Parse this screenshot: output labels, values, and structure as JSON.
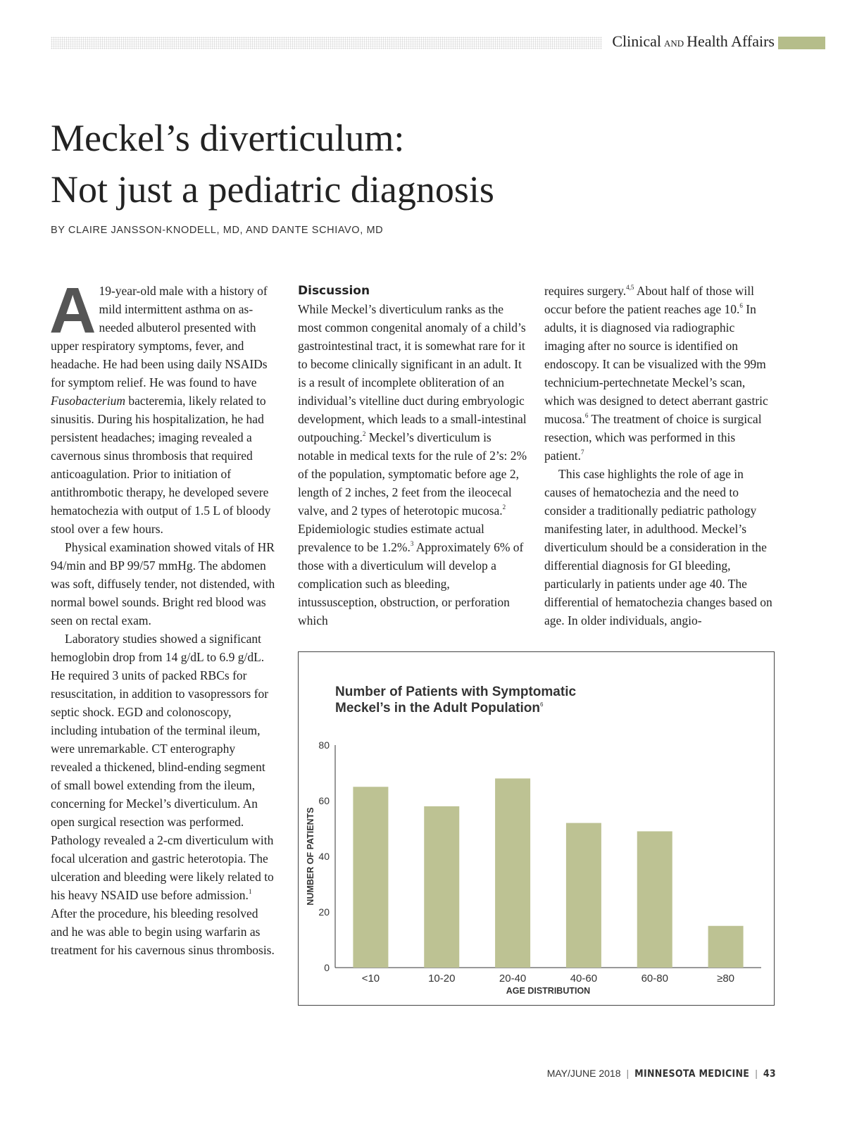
{
  "header": {
    "section": [
      "Clinical",
      "AND",
      "Health Affairs"
    ]
  },
  "article": {
    "title": [
      "Meckel’s diverticulum:",
      "Not just a pediatric diagnosis"
    ],
    "byline": "BY CLAIRE JANSSON-KNODELL, MD, AND DANTE SCHIAVO, MD",
    "columns": [
      {
        "blocks": [
          {
            "dropcap": "A",
            "runs": [
              "19-year-old male with a history of mild intermittent asthma on as-needed albuterol presented with upper respiratory symptoms, fever, and headache. He had been using daily NSAIDs for symptom relief. He was found to have ",
              {
                "i": "Fusobacterium"
              },
              " bacteremia, likely related to sinusitis. During his hospitalization, he had persistent headaches; imaging revealed a cavernous sinus thrombosis that required anticoagulation. Prior to initiation of antithrombotic therapy, he developed severe hematochezia with output of 1.5 L of bloody stool over a few hours."
            ]
          },
          {
            "runs": [
              "Physical examination showed vitals of HR 94/min and BP 99/57 mmHg. The abdomen was soft, diffusely tender, not distended, with normal bowel sounds. Bright red blood was seen on rectal exam."
            ]
          },
          {
            "runs": [
              "Laboratory studies showed a significant hemoglobin drop from 14 g/dL to 6.9 g/dL. He required 3 units of packed RBCs for resuscitation, in addition to vasopressors for septic shock. EGD and colonoscopy, including intubation of the terminal ileum, were unremarkable. CT enterography revealed a thickened, blind-ending segment of small bowel extending from the ileum, concerning for Meckel’s diverticulum. An open surgical resection was performed. Pathology revealed a 2-cm diverticulum with focal ulceration and gastric heterotopia. The ulceration and bleeding were likely related to his heavy NSAID use before admission.",
              {
                "sup": "1"
              },
              " After the procedure, his bleeding resolved and he was able to begin using warfarin as treatment for his cavernous sinus thrombosis."
            ]
          }
        ]
      },
      {
        "blocks": [
          {
            "heading": "Discussion"
          },
          {
            "runs": [
              "While Meckel’s diverticulum ranks as the most common congenital anomaly of a child’s gastrointestinal tract, it is somewhat rare for it to become clinically significant in an adult. It is a result of incomplete obliteration of an individual’s vitelline duct during embryologic development, which leads to a small-intestinal outpouching.",
              {
                "sup": "2"
              },
              " Meckel’s diverticulum is notable in medical texts for the rule of 2’s: 2% of the population, symptomatic before age 2, length of 2 inches, 2 feet from the ileocecal valve, and 2 types of heterotopic mucosa.",
              {
                "sup": "2"
              },
              " Epidemiologic studies estimate actual prevalence to be 1.2%.",
              {
                "sup": "3"
              },
              " Approximately 6% of those with a diverticulum will develop a complication such as bleeding, intussusception, obstruction, or perforation which"
            ]
          }
        ]
      },
      {
        "blocks": [
          {
            "runs": [
              "requires surgery.",
              {
                "sup": "4,5"
              },
              " About half of those will occur before the patient reaches age 10.",
              {
                "sup": "6"
              },
              " In adults, it is diagnosed via radiographic imaging after no source is identified on endoscopy. It can be visualized with the 99m technicium-pertechnetate Meckel’s scan, which was designed to detect aberrant gastric mucosa.",
              {
                "sup": "6"
              },
              " The treatment of choice is surgical resection, which was performed in this patient.",
              {
                "sup": "7"
              }
            ]
          },
          {
            "runs": [
              "This case highlights the role of age in causes of hematochezia and the need to consider a traditionally pediatric pathology manifesting later, in adulthood. Meckel’s diverticulum should be a consideration in the differential diagnosis for GI bleeding, particularly in patients under age 40. The differential of hematochezia changes based on age. In older individuals, angio-"
            ]
          }
        ]
      }
    ]
  },
  "chart_data": {
    "type": "bar",
    "title": [
      "Number of Patients with Symptomatic",
      "Meckel’s in the Adult Population"
    ],
    "title_ref": "6",
    "categories": [
      "<10",
      "10-20",
      "20-40",
      "40-60",
      "60-80",
      "≥80"
    ],
    "values": [
      65,
      58,
      68,
      52,
      49,
      15
    ],
    "color": "#bdc293",
    "ylim": [
      0,
      80
    ],
    "yticks": [
      0,
      20,
      40,
      60,
      80
    ],
    "xlabel": "AGE DISTRIBUTION",
    "ylabel": "NUMBER OF PATIENTS"
  },
  "footer": {
    "issue": "MAY/JUNE 2018",
    "publication": "MINNESOTA MEDICINE",
    "page": "43"
  }
}
